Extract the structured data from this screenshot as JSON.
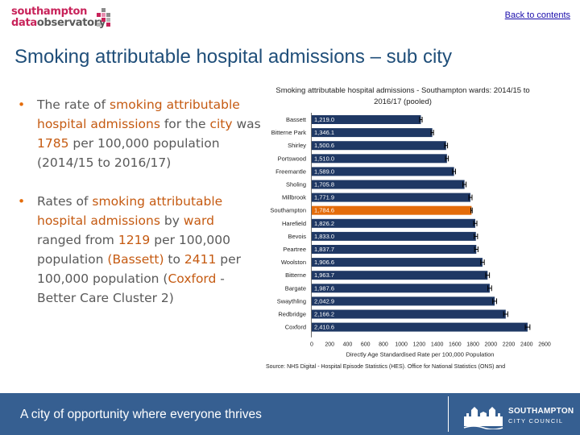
{
  "header": {
    "logo_part1": "southampton",
    "logo_part2a": "data",
    "logo_part2b": "observatory",
    "back_link": "Back to contents"
  },
  "page_title": "Smoking attributable hospital admissions – sub city",
  "bullets": {
    "b1": [
      "The rate of ",
      "smoking attributable hospital admissions",
      " for the ",
      "city",
      " was ",
      "1785",
      " per 100,000 population (2014/15 to 2016/17)"
    ],
    "b2": [
      "Rates of ",
      "smoking attributable hospital admissions",
      " by ",
      "ward",
      " ranged from ",
      "1219",
      " per 100,000 population ",
      "(Bassett)",
      " to ",
      "2411",
      " per 100,000 population (",
      "Coxford",
      " - Better Care Cluster 2)"
    ]
  },
  "footer": {
    "tagline": "A city of opportunity where everyone thrives",
    "council_line1": "SOUTHAMPTON",
    "council_line2": "CITY COUNCIL"
  },
  "source": "Source: NHS Digital - Hospital Episode Statistics (HES). Office for National Statistics (ONS) and",
  "colors": {
    "bar": "#1f3864",
    "highlight": "#e46c0a",
    "title": "#1f4e79",
    "footer": "#365f91"
  },
  "chart_data": {
    "type": "bar",
    "orientation": "horizontal",
    "title": "Smoking attributable hospital admissions - Southampton wards: 2014/15 to 2016/17 (pooled)",
    "categories": [
      "Bassett",
      "Bitterne Park",
      "Shirley",
      "Portswood",
      "Freemantle",
      "Sholing",
      "Millbrook",
      "Southampton",
      "Harefield",
      "Bevois",
      "Peartree",
      "Woolston",
      "Bitterne",
      "Bargate",
      "Swaythling",
      "Redbridge",
      "Coxford"
    ],
    "values": [
      1219.0,
      1346.1,
      1500.6,
      1510.0,
      1589.0,
      1705.8,
      1771.9,
      1784.6,
      1826.2,
      1833.0,
      1837.7,
      1906.6,
      1963.7,
      1987.6,
      2042.9,
      2166.2,
      2410.6
    ],
    "value_labels": [
      "1,219.0",
      "1,346.1",
      "1,500.6",
      "1,510.0",
      "1,589.0",
      "1,705.8",
      "1,771.9",
      "1,784.6",
      "1,826.2",
      "1,833.0",
      "1,837.7",
      "1,906.6",
      "1,963.7",
      "1,987.6",
      "2,042.9",
      "2,166.2",
      "2,410.6"
    ],
    "error_half_width": [
      14,
      14,
      16,
      16,
      17,
      18,
      18,
      8,
      18,
      19,
      19,
      20,
      21,
      21,
      22,
      23,
      26
    ],
    "highlight_category": "Southampton",
    "xlim": [
      0,
      2600
    ],
    "xticks": [
      0,
      200,
      400,
      600,
      800,
      1000,
      1200,
      1400,
      1600,
      1800,
      2000,
      2200,
      2400,
      2600
    ],
    "xlabel": "Directly Age Standardised Rate per 100,000 Population",
    "ylabel": ""
  }
}
